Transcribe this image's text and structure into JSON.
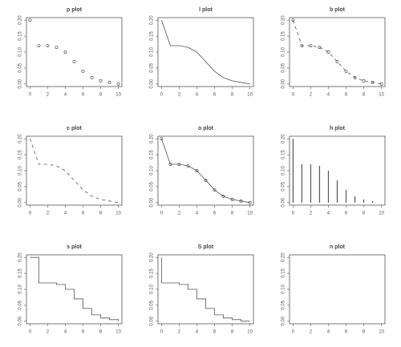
{
  "chart_data": [
    {
      "type": "scatter",
      "title": "p plot",
      "x": [
        0,
        1,
        2,
        3,
        4,
        5,
        6,
        7,
        8,
        9,
        10
      ],
      "values": [
        0.2,
        0.12,
        0.12,
        0.115,
        0.1,
        0.07,
        0.04,
        0.02,
        0.01,
        0.005,
        0
      ],
      "xlim": [
        -0.4,
        10.4
      ],
      "ylim": [
        -0.008,
        0.208
      ],
      "xticks": [
        0,
        2,
        4,
        6,
        8,
        10
      ],
      "yticks": [
        {
          "value": 0,
          "label": "0.00"
        },
        {
          "value": 0.05,
          "label": "0.05"
        },
        {
          "value": 0.1,
          "label": "0.10"
        },
        {
          "value": 0.15,
          "label": "0.15"
        },
        {
          "value": 0.2,
          "label": "0.20"
        }
      ]
    },
    {
      "type": "line",
      "title": "l plot",
      "x": [
        0,
        1,
        2,
        3,
        4,
        5,
        6,
        7,
        8,
        9,
        10
      ],
      "values": [
        0.2,
        0.12,
        0.12,
        0.115,
        0.1,
        0.07,
        0.04,
        0.02,
        0.01,
        0.005,
        0
      ],
      "xlim": [
        -0.4,
        10.4
      ],
      "ylim": [
        -0.008,
        0.208
      ],
      "xticks": [
        0,
        2,
        4,
        6,
        8,
        10
      ],
      "yticks": [
        {
          "value": 0,
          "label": "0.00"
        },
        {
          "value": 0.05,
          "label": "0.05"
        },
        {
          "value": 0.1,
          "label": "0.10"
        },
        {
          "value": 0.15,
          "label": "0.15"
        },
        {
          "value": 0.2,
          "label": "0.20"
        }
      ]
    },
    {
      "type": "both",
      "title": "b plot",
      "x": [
        0,
        1,
        2,
        3,
        4,
        5,
        6,
        7,
        8,
        9,
        10
      ],
      "values": [
        0.2,
        0.12,
        0.12,
        0.115,
        0.1,
        0.07,
        0.04,
        0.02,
        0.01,
        0.005,
        0
      ],
      "xlim": [
        -0.4,
        10.4
      ],
      "ylim": [
        -0.008,
        0.208
      ],
      "xticks": [
        0,
        2,
        4,
        6,
        8,
        10
      ],
      "yticks": [
        {
          "value": 0,
          "label": "0.00"
        },
        {
          "value": 0.05,
          "label": "0.05"
        },
        {
          "value": 0.1,
          "label": "0.10"
        },
        {
          "value": 0.15,
          "label": "0.15"
        },
        {
          "value": 0.2,
          "label": "0.20"
        }
      ]
    },
    {
      "type": "dashed",
      "title": "c plot",
      "x": [
        0,
        1,
        2,
        3,
        4,
        5,
        6,
        7,
        8,
        9,
        10
      ],
      "values": [
        0.2,
        0.12,
        0.12,
        0.115,
        0.1,
        0.07,
        0.04,
        0.02,
        0.01,
        0.005,
        0
      ],
      "xlim": [
        -0.4,
        10.4
      ],
      "ylim": [
        -0.008,
        0.208
      ],
      "xticks": [
        0,
        2,
        4,
        6,
        8,
        10
      ],
      "yticks": [
        {
          "value": 0,
          "label": "0.00"
        },
        {
          "value": 0.05,
          "label": "0.05"
        },
        {
          "value": 0.1,
          "label": "0.10"
        },
        {
          "value": 0.15,
          "label": "0.15"
        },
        {
          "value": 0.2,
          "label": "0.20"
        }
      ]
    },
    {
      "type": "overplotted",
      "title": "o plot",
      "x": [
        0,
        1,
        2,
        3,
        4,
        5,
        6,
        7,
        8,
        9,
        10
      ],
      "values": [
        0.2,
        0.12,
        0.12,
        0.115,
        0.1,
        0.07,
        0.04,
        0.02,
        0.01,
        0.005,
        0
      ],
      "xlim": [
        -0.4,
        10.4
      ],
      "ylim": [
        -0.008,
        0.208
      ],
      "xticks": [
        0,
        2,
        4,
        6,
        8,
        10
      ],
      "yticks": [
        {
          "value": 0,
          "label": "0.00"
        },
        {
          "value": 0.05,
          "label": "0.05"
        },
        {
          "value": 0.1,
          "label": "0.10"
        },
        {
          "value": 0.15,
          "label": "0.15"
        },
        {
          "value": 0.2,
          "label": "0.20"
        }
      ]
    },
    {
      "type": "needle",
      "title": "h plot",
      "x": [
        0,
        1,
        2,
        3,
        4,
        5,
        6,
        7,
        8,
        9,
        10
      ],
      "values": [
        0.2,
        0.12,
        0.12,
        0.115,
        0.1,
        0.07,
        0.04,
        0.02,
        0.01,
        0.005,
        0
      ],
      "xlim": [
        -0.4,
        10.4
      ],
      "ylim": [
        -0.008,
        0.208
      ],
      "xticks": [
        0,
        2,
        4,
        6,
        8,
        10
      ],
      "yticks": [
        {
          "value": 0,
          "label": "0.00"
        },
        {
          "value": 0.05,
          "label": "0.05"
        },
        {
          "value": 0.1,
          "label": "0.10"
        },
        {
          "value": 0.15,
          "label": "0.15"
        },
        {
          "value": 0.2,
          "label": "0.20"
        }
      ]
    },
    {
      "type": "step",
      "title": "s plot",
      "x": [
        0,
        1,
        2,
        3,
        4,
        5,
        6,
        7,
        8,
        9,
        10
      ],
      "values": [
        0.2,
        0.12,
        0.12,
        0.115,
        0.1,
        0.07,
        0.04,
        0.02,
        0.01,
        0.005,
        0
      ],
      "xlim": [
        -0.4,
        10.4
      ],
      "ylim": [
        -0.008,
        0.208
      ],
      "xticks": [
        0,
        2,
        4,
        6,
        8,
        10
      ],
      "yticks": [
        {
          "value": 0,
          "label": "0.00"
        },
        {
          "value": 0.05,
          "label": "0.05"
        },
        {
          "value": 0.1,
          "label": "0.10"
        },
        {
          "value": 0.15,
          "label": "0.15"
        },
        {
          "value": 0.2,
          "label": "0.20"
        }
      ]
    },
    {
      "type": "stepupper",
      "title": "S plot",
      "x": [
        0,
        1,
        2,
        3,
        4,
        5,
        6,
        7,
        8,
        9,
        10
      ],
      "values": [
        0.2,
        0.12,
        0.12,
        0.115,
        0.1,
        0.07,
        0.04,
        0.02,
        0.01,
        0.005,
        0
      ],
      "xlim": [
        -0.4,
        10.4
      ],
      "ylim": [
        -0.008,
        0.208
      ],
      "xticks": [
        0,
        2,
        4,
        6,
        8,
        10
      ],
      "yticks": [
        {
          "value": 0,
          "label": "0.00"
        },
        {
          "value": 0.05,
          "label": "0.05"
        },
        {
          "value": 0.1,
          "label": "0.10"
        },
        {
          "value": 0.15,
          "label": "0.15"
        },
        {
          "value": 0.2,
          "label": "0.20"
        }
      ]
    },
    {
      "type": "empty",
      "title": "n plot",
      "xlim": [
        -0.4,
        10.4
      ],
      "ylim": [
        -0.008,
        0.208
      ],
      "xticks": [
        0,
        2,
        4,
        6,
        8,
        10
      ],
      "yticks": [
        {
          "value": 0,
          "label": "0.00"
        },
        {
          "value": 0.05,
          "label": "0.05"
        },
        {
          "value": 0.1,
          "label": "0.10"
        },
        {
          "value": 0.15,
          "label": "0.15"
        },
        {
          "value": 0.2,
          "label": "0.20"
        }
      ]
    }
  ]
}
